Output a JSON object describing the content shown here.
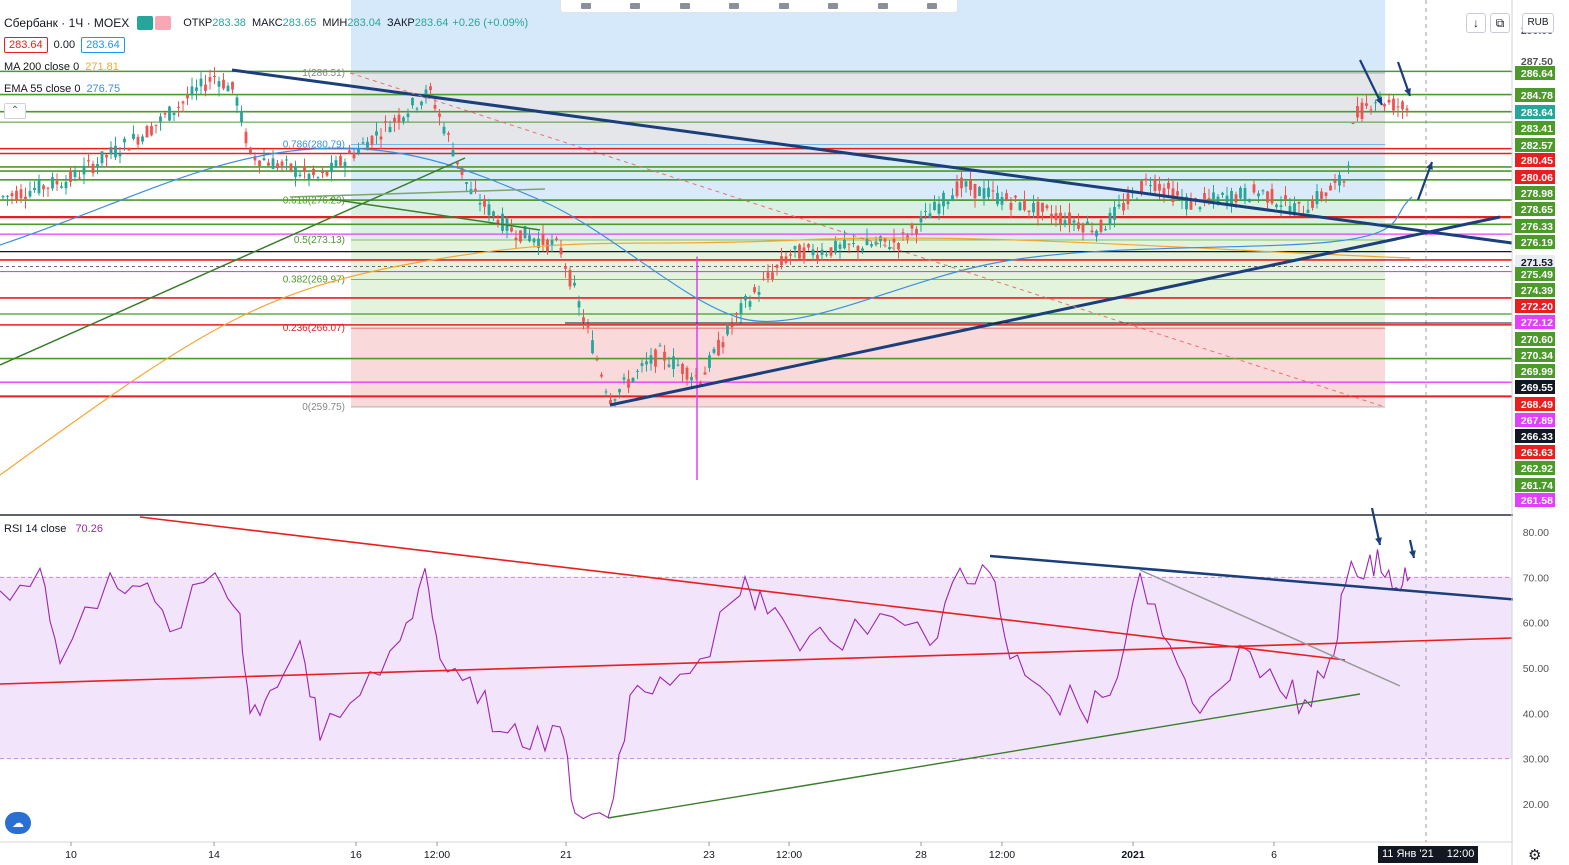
{
  "header": {
    "symbol": "Сбербанк · 1Ч · MOEX",
    "ohlc": [
      {
        "k": "ОТКР",
        "v": "283.38"
      },
      {
        "k": "МАКС",
        "v": "283.65"
      },
      {
        "k": "МИН",
        "v": "283.04"
      },
      {
        "k": "ЗАКР",
        "v": "283.64"
      }
    ],
    "change": "+0.26 (+0.09%)",
    "bid": "283.64",
    "spread": "0.00",
    "ask": "283.64"
  },
  "indicators": {
    "ma200": {
      "name": "MA 200 close 0",
      "value": "271.81",
      "color": "#f7a531"
    },
    "ema55": {
      "name": "EMA 55 close 0",
      "value": "276.75",
      "color": "#3d8ee0"
    },
    "rsi": {
      "name": "RSI 14 close",
      "value": "70.26",
      "color": "#9c27b0"
    }
  },
  "toolbar": {
    "currency": "RUB",
    "scroll_icon": "↓",
    "fullscreen_icon": "⧉",
    "settings_icon": "⚙",
    "logo_icon": "tradingview-cloud-icon"
  },
  "time_axis": {
    "labels": [
      "10",
      "14",
      "16",
      "12:00",
      "21",
      "23",
      "12:00",
      "28",
      "12:00",
      "2021",
      "6",
      "11 Янв '21",
      "12:00"
    ],
    "current_label": "11 Янв '21",
    "current_time": "12:00"
  },
  "fib_labels": [
    "1(286.51)",
    "0.786(280.79)",
    "0.618(276.29)",
    "0.5(273.13)",
    "0.382(269.97)",
    "0.236(266.07)",
    "0(259.75)"
  ],
  "price_axis": [
    {
      "v": "290.00",
      "bg": "",
      "fg": "#555"
    },
    {
      "v": "287.50",
      "bg": "",
      "fg": "#555"
    },
    {
      "v": "286.64",
      "bg": "#4c9a2a",
      "fg": "#fff"
    },
    {
      "v": "284.78",
      "bg": "#4c9a2a",
      "fg": "#fff"
    },
    {
      "v": "283.64",
      "bg": "#26a69a",
      "fg": "#fff"
    },
    {
      "v": "283.41",
      "bg": "#4c9a2a",
      "fg": "#fff"
    },
    {
      "v": "282.57",
      "bg": "#4c9a2a",
      "fg": "#fff"
    },
    {
      "v": "280.45",
      "bg": "#e91e1e",
      "fg": "#fff"
    },
    {
      "v": "280.06",
      "bg": "#e91e1e",
      "fg": "#fff"
    },
    {
      "v": "278.98",
      "bg": "#4c9a2a",
      "fg": "#fff"
    },
    {
      "v": "278.65",
      "bg": "#4c9a2a",
      "fg": "#fff"
    },
    {
      "v": "276.33",
      "bg": "#4c9a2a",
      "fg": "#fff"
    },
    {
      "v": "276.19",
      "bg": "#4c9a2a",
      "fg": "#fff"
    },
    {
      "v": "271.53",
      "bg": "#e9ecf2",
      "fg": "#131722"
    },
    {
      "v": "275.49",
      "bg": "#4c9a2a",
      "fg": "#fff"
    },
    {
      "v": "274.39",
      "bg": "#4c9a2a",
      "fg": "#fff"
    },
    {
      "v": "272.20",
      "bg": "#e91e1e",
      "fg": "#fff"
    },
    {
      "v": "272.12",
      "bg": "#e040fb",
      "fg": "#fff"
    },
    {
      "v": "270.60",
      "bg": "#4c9a2a",
      "fg": "#fff"
    },
    {
      "v": "270.34",
      "bg": "#4c9a2a",
      "fg": "#fff"
    },
    {
      "v": "269.99",
      "bg": "#4c9a2a",
      "fg": "#fff"
    },
    {
      "v": "269.55",
      "bg": "#131722",
      "fg": "#fff"
    },
    {
      "v": "268.49",
      "bg": "#e91e1e",
      "fg": "#fff"
    },
    {
      "v": "267.89",
      "bg": "#e040fb",
      "fg": "#fff"
    },
    {
      "v": "266.33",
      "bg": "#131722",
      "fg": "#fff"
    },
    {
      "v": "263.63",
      "bg": "#e91e1e",
      "fg": "#fff"
    },
    {
      "v": "262.92",
      "bg": "#4c9a2a",
      "fg": "#fff"
    },
    {
      "v": "261.74",
      "bg": "#4c9a2a",
      "fg": "#fff"
    },
    {
      "v": "261.58",
      "bg": "#e040fb",
      "fg": "#fff"
    }
  ],
  "rsi_axis": [
    "80.00",
    "70.00",
    "60.00",
    "50.00",
    "40.00",
    "30.00",
    "20.00"
  ]
}
